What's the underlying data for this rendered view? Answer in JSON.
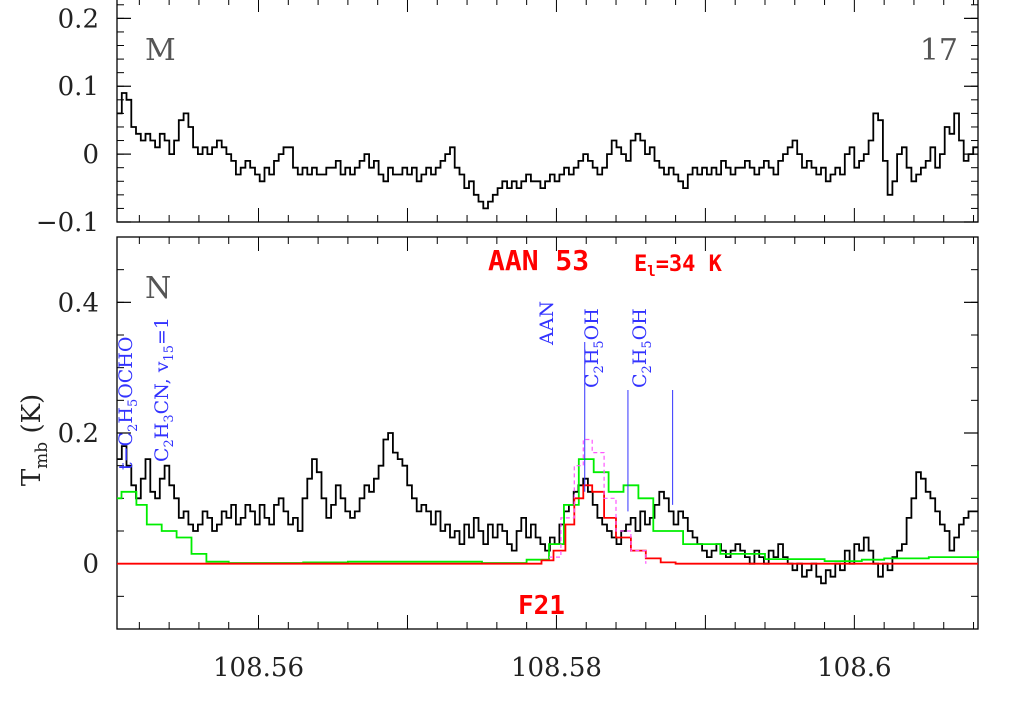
{
  "chart_data": [
    {
      "type": "line",
      "panel_label": "M",
      "panel_number": "17",
      "xlim": [
        108.5505,
        108.6083
      ],
      "ylim": [
        -0.1,
        0.23
      ],
      "yticks": [
        {
          "v": 0.2,
          "label": "0.2"
        },
        {
          "v": 0.1,
          "label": "0.1"
        },
        {
          "v": 0,
          "label": "0"
        },
        {
          "v": -0.1,
          "label": "−0.1"
        }
      ],
      "series": [
        {
          "color": "#000000",
          "values": [
            0.06,
            0.09,
            0.08,
            0.04,
            0.03,
            0.02,
            0.03,
            0.02,
            0.01,
            0.03,
            0.02,
            0.0,
            0.02,
            0.05,
            0.06,
            0.04,
            0.01,
            0.0,
            0.01,
            0.0,
            0.01,
            0.02,
            0.01,
            0.0,
            -0.01,
            -0.03,
            -0.02,
            -0.01,
            -0.02,
            -0.03,
            -0.04,
            -0.02,
            -0.03,
            -0.01,
            0.0,
            0.01,
            0.01,
            -0.02,
            -0.03,
            -0.02,
            -0.03,
            -0.02,
            -0.03,
            -0.03,
            -0.02,
            -0.02,
            -0.01,
            -0.03,
            -0.02,
            -0.03,
            -0.02,
            -0.01,
            0.0,
            -0.02,
            -0.01,
            -0.03,
            -0.04,
            -0.02,
            -0.03,
            -0.03,
            -0.02,
            -0.03,
            -0.02,
            -0.04,
            -0.03,
            -0.02,
            -0.03,
            -0.02,
            -0.01,
            0.0,
            0.01,
            -0.02,
            -0.03,
            -0.05,
            -0.04,
            -0.06,
            -0.07,
            -0.08,
            -0.07,
            -0.06,
            -0.05,
            -0.04,
            -0.05,
            -0.04,
            -0.05,
            -0.04,
            -0.03,
            -0.04,
            -0.04,
            -0.05,
            -0.04,
            -0.03,
            -0.04,
            -0.03,
            -0.02,
            -0.03,
            -0.02,
            -0.01,
            0.0,
            -0.01,
            -0.02,
            -0.03,
            -0.02,
            0.0,
            0.02,
            0.01,
            0.0,
            -0.01,
            0.02,
            0.03,
            0.02,
            0.0,
            0.01,
            -0.01,
            -0.02,
            -0.03,
            -0.02,
            -0.03,
            -0.04,
            -0.05,
            -0.03,
            -0.02,
            -0.03,
            -0.02,
            -0.03,
            -0.02,
            -0.03,
            -0.01,
            -0.02,
            -0.03,
            -0.02,
            -0.02,
            -0.01,
            -0.02,
            -0.03,
            -0.02,
            -0.01,
            -0.02,
            -0.03,
            -0.01,
            0.0,
            0.01,
            0.02,
            0.0,
            -0.02,
            -0.01,
            -0.02,
            -0.03,
            -0.02,
            -0.04,
            -0.03,
            -0.02,
            -0.03,
            0.0,
            0.01,
            -0.02,
            -0.01,
            0.0,
            0.02,
            0.06,
            0.05,
            -0.01,
            -0.06,
            -0.04,
            0.0,
            0.01,
            -0.02,
            -0.04,
            -0.03,
            -0.02,
            -0.01,
            0.01,
            -0.02,
            0.0,
            0.04,
            0.03,
            0.06,
            0.02,
            -0.01,
            0.0,
            0.01
          ]
        }
      ]
    },
    {
      "type": "line",
      "panel_label": "N",
      "xlim": [
        108.5505,
        108.6083
      ],
      "ylim": [
        -0.1,
        0.5
      ],
      "ylabel_main": "T",
      "ylabel_sub": "mb",
      "ylabel_unit": "(K)",
      "xticks": [
        {
          "v": 108.56,
          "label": "108.56"
        },
        {
          "v": 108.58,
          "label": "108.58"
        },
        {
          "v": 108.6,
          "label": "108.6"
        }
      ],
      "yticks": [
        {
          "v": 0.4,
          "label": "0.4"
        },
        {
          "v": 0.2,
          "label": "0.2"
        },
        {
          "v": 0,
          "label": "0"
        }
      ],
      "series": [
        {
          "color": "#000000",
          "step": true,
          "values": [
            0.16,
            0.18,
            0.15,
            0.12,
            0.1,
            0.13,
            0.16,
            0.11,
            0.1,
            0.13,
            0.15,
            0.12,
            0.1,
            0.07,
            0.08,
            0.06,
            0.05,
            0.06,
            0.08,
            0.07,
            0.05,
            0.06,
            0.08,
            0.07,
            0.09,
            0.06,
            0.07,
            0.09,
            0.08,
            0.06,
            0.09,
            0.07,
            0.06,
            0.09,
            0.1,
            0.08,
            0.06,
            0.07,
            0.05,
            0.1,
            0.13,
            0.16,
            0.14,
            0.1,
            0.07,
            0.09,
            0.12,
            0.1,
            0.08,
            0.07,
            0.08,
            0.1,
            0.12,
            0.11,
            0.13,
            0.15,
            0.19,
            0.2,
            0.17,
            0.16,
            0.15,
            0.12,
            0.1,
            0.08,
            0.09,
            0.08,
            0.06,
            0.08,
            0.05,
            0.06,
            0.04,
            0.05,
            0.03,
            0.06,
            0.04,
            0.07,
            0.05,
            0.03,
            0.06,
            0.04,
            0.06,
            0.05,
            0.03,
            0.02,
            0.05,
            0.07,
            0.04,
            0.06,
            0.04,
            0.03,
            0.02,
            0.04,
            0.03,
            0.06,
            0.08,
            0.09,
            0.11,
            0.12,
            0.13,
            0.11,
            0.09,
            0.07,
            0.06,
            0.05,
            0.04,
            0.03,
            0.05,
            0.06,
            0.07,
            0.05,
            0.08,
            0.06,
            0.07,
            0.09,
            0.11,
            0.1,
            0.08,
            0.06,
            0.08,
            0.07,
            0.05,
            0.04,
            0.03,
            0.02,
            0.01,
            0.02,
            0.03,
            0.02,
            0.01,
            0.02,
            0.03,
            0.02,
            0.01,
            0.0,
            0.02,
            0.01,
            0.0,
            0.02,
            0.01,
            0.03,
            0.01,
            0.0,
            -0.01,
            0.0,
            -0.02,
            -0.01,
            0.0,
            -0.02,
            -0.03,
            -0.01,
            -0.02,
            0.0,
            -0.01,
            0.02,
            0.0,
            0.03,
            0.02,
            0.04,
            0.02,
            0.0,
            -0.02,
            0.0,
            -0.01,
            0.01,
            0.02,
            0.03,
            0.07,
            0.1,
            0.14,
            0.13,
            0.11,
            0.1,
            0.08,
            0.06,
            0.05,
            0.02,
            0.04,
            0.06,
            0.07,
            0.08,
            0.08
          ]
        },
        {
          "color": "#00ee00",
          "step": true,
          "points": [
            [
              108.5505,
              0.1
            ],
            [
              108.5508,
              0.11
            ],
            [
              108.5512,
              0.11
            ],
            [
              108.5518,
              0.09
            ],
            [
              108.5525,
              0.06
            ],
            [
              108.5535,
              0.05
            ],
            [
              108.5545,
              0.04
            ],
            [
              108.5555,
              0.015
            ],
            [
              108.5565,
              0.003
            ],
            [
              108.558,
              0.001
            ],
            [
              108.563,
              0.002
            ],
            [
              108.566,
              0.003
            ],
            [
              108.575,
              0.001
            ],
            [
              108.578,
              0.006
            ],
            [
              108.5795,
              0.03
            ],
            [
              108.5805,
              0.09
            ],
            [
              108.5815,
              0.16
            ],
            [
              108.5825,
              0.14
            ],
            [
              108.5835,
              0.11
            ],
            [
              108.5845,
              0.12
            ],
            [
              108.5855,
              0.1
            ],
            [
              108.5865,
              0.05
            ],
            [
              108.5885,
              0.03
            ],
            [
              108.591,
              0.015
            ],
            [
              108.594,
              0.007
            ],
            [
              108.598,
              0.004
            ],
            [
              108.6005,
              0.006
            ],
            [
              108.602,
              0.008
            ],
            [
              108.605,
              0.01
            ],
            [
              108.6083,
              0.02
            ]
          ]
        },
        {
          "color": "#ff0000",
          "step": true,
          "points": [
            [
              108.5505,
              0.0
            ],
            [
              108.578,
              0.0
            ],
            [
              108.579,
              0.005
            ],
            [
              108.5798,
              0.02
            ],
            [
              108.5806,
              0.06
            ],
            [
              108.5812,
              0.1
            ],
            [
              108.5818,
              0.12
            ],
            [
              108.5824,
              0.11
            ],
            [
              108.5832,
              0.07
            ],
            [
              108.584,
              0.04
            ],
            [
              108.585,
              0.02
            ],
            [
              108.586,
              0.008
            ],
            [
              108.587,
              0.002
            ],
            [
              108.588,
              0.0
            ],
            [
              108.6083,
              0.0
            ]
          ]
        },
        {
          "color": "#ff55ff",
          "dashed": true,
          "points": [
            [
              108.5795,
              0.01
            ],
            [
              108.5803,
              0.07
            ],
            [
              108.5812,
              0.15
            ],
            [
              108.5818,
              0.19
            ],
            [
              108.5824,
              0.17
            ],
            [
              108.5832,
              0.1
            ],
            [
              108.584,
              0.05
            ],
            [
              108.585,
              0.02
            ],
            [
              108.586,
              0.0
            ]
          ]
        }
      ],
      "annotations": [
        {
          "text_main": "t−C",
          "sub1": "2",
          "mid": "H",
          "sub2": "5",
          "tail": "OCHO",
          "x": 108.5512,
          "y_start": 0.16
        },
        {
          "text_main": "C",
          "sub1": "2",
          "mid": "H",
          "sub2": "3",
          "tail": "CN, v",
          "sub3": "15",
          "end": "=1",
          "x": 108.5542,
          "y_start": 0.14
        },
        {
          "text": "AAN",
          "x": 108.5819,
          "y_start": 0.11
        },
        {
          "text_main": "C",
          "sub1": "2",
          "mid": "H",
          "sub2": "5",
          "tail": "OH",
          "x": 108.5848,
          "y_start": 0.08
        },
        {
          "text_main": "C",
          "sub1": "2",
          "mid": "H",
          "sub2": "5",
          "tail": "OH",
          "x": 108.5878,
          "y_start": 0.09
        }
      ],
      "title_red": "AAN 53",
      "energy_label": "E",
      "energy_sub": "l",
      "energy_value": "=34 K",
      "bottom_red": "F21"
    }
  ]
}
